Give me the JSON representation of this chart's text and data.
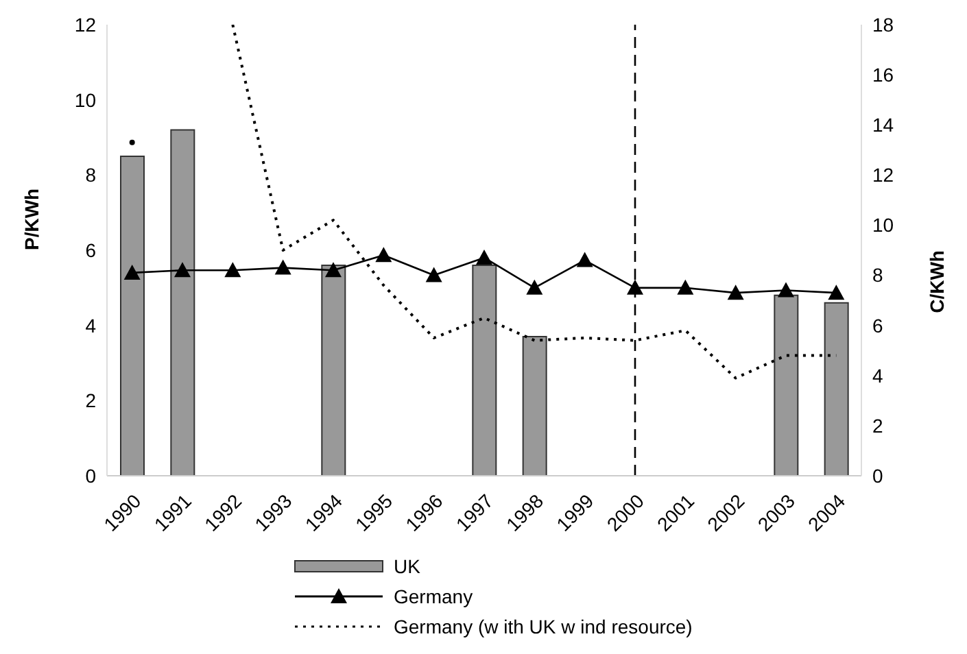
{
  "chart_data": {
    "type": "bar",
    "ylabel": "P/KWh",
    "y2label": "C/KWh",
    "categories": [
      "1990",
      "1991",
      "1992",
      "1993",
      "1994",
      "1995",
      "1996",
      "1997",
      "1998",
      "1999",
      "2000",
      "2001",
      "2002",
      "2003",
      "2004"
    ],
    "series": [
      {
        "name": "UK",
        "color": "#999999",
        "values": [
          8.5,
          9.2,
          null,
          null,
          5.6,
          null,
          null,
          5.6,
          3.7,
          null,
          null,
          null,
          null,
          4.8,
          4.6
        ]
      },
      {
        "name": "Germany",
        "type": "line",
        "axis": "y2",
        "color": "#000000",
        "marker": "triangle",
        "line_style": "solid",
        "values": [
          8.1,
          8.2,
          8.2,
          8.3,
          8.2,
          8.8,
          8.0,
          8.7,
          7.5,
          8.6,
          7.5,
          7.5,
          7.3,
          7.4,
          7.3
        ]
      },
      {
        "name": "Germany (w ith UK w ind resource)",
        "type": "line",
        "axis": "y2",
        "color": "#000000",
        "marker": "none",
        "line_style": "dotted",
        "values": [
          13.3,
          null,
          18,
          9.0,
          10.2,
          7.6,
          5.5,
          6.3,
          5.4,
          5.5,
          5.4,
          5.8,
          3.9,
          4.8,
          4.8
        ]
      }
    ],
    "ylim": [
      0,
      12
    ],
    "yticks": [
      0,
      2,
      4,
      6,
      8,
      10,
      12
    ],
    "y2lim": [
      0,
      18
    ],
    "y2ticks": [
      0,
      2,
      4,
      6,
      8,
      10,
      12,
      14,
      16,
      18
    ],
    "ref_lines": [
      {
        "axis": "x",
        "value": "2000",
        "line_style": "dashed",
        "color": "#000000"
      }
    ],
    "grid": false,
    "legend": "bottom"
  }
}
